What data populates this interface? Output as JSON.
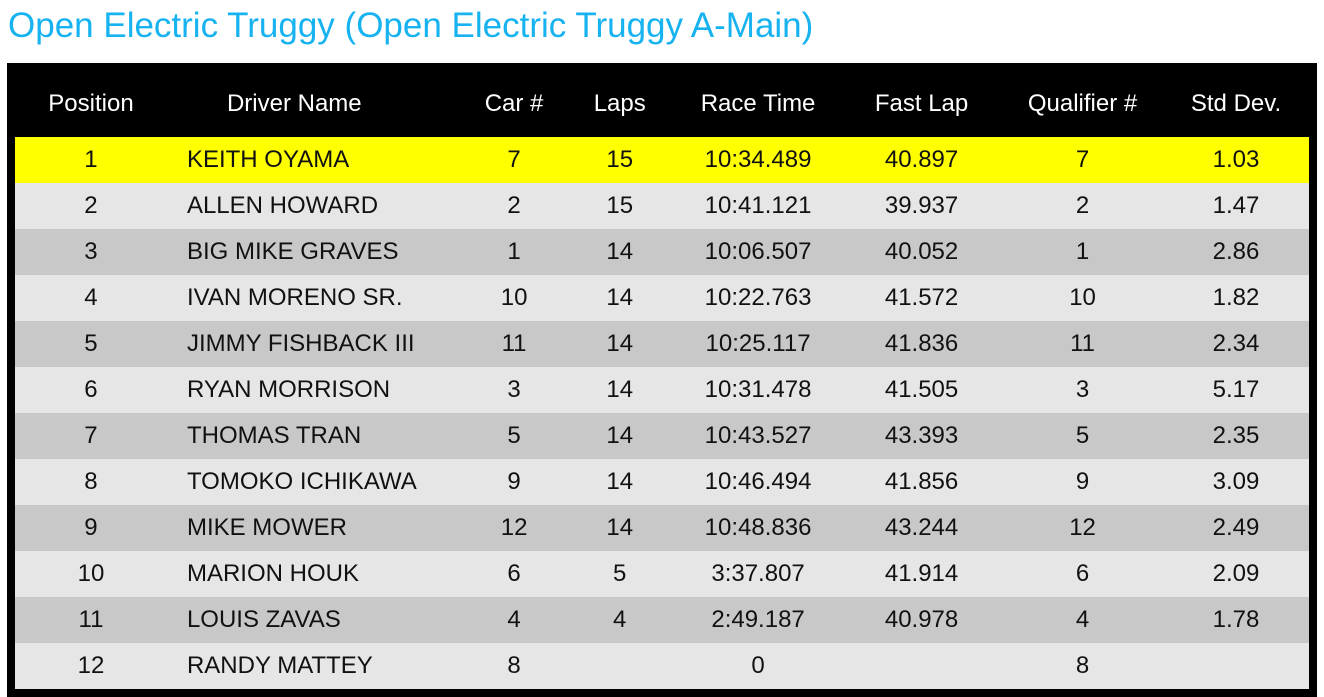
{
  "title": "Open Electric Truggy (Open Electric Truggy A-Main)",
  "table": {
    "headers": [
      "Position",
      "Driver Name",
      "Car #",
      "Laps",
      "Race Time",
      "Fast Lap",
      "Qualifier #",
      "Std Dev."
    ],
    "rows": [
      [
        "1",
        "KEITH OYAMA",
        "7",
        "15",
        "10:34.489",
        "40.897",
        "7",
        "1.03"
      ],
      [
        "2",
        "ALLEN HOWARD",
        "2",
        "15",
        "10:41.121",
        "39.937",
        "2",
        "1.47"
      ],
      [
        "3",
        "BIG MIKE GRAVES",
        "1",
        "14",
        "10:06.507",
        "40.052",
        "1",
        "2.86"
      ],
      [
        "4",
        "IVAN MORENO SR.",
        "10",
        "14",
        "10:22.763",
        "41.572",
        "10",
        "1.82"
      ],
      [
        "5",
        "JIMMY FISHBACK III",
        "11",
        "14",
        "10:25.117",
        "41.836",
        "11",
        "2.34"
      ],
      [
        "6",
        "RYAN MORRISON",
        "3",
        "14",
        "10:31.478",
        "41.505",
        "3",
        "5.17"
      ],
      [
        "7",
        "THOMAS TRAN",
        "5",
        "14",
        "10:43.527",
        "43.393",
        "5",
        "2.35"
      ],
      [
        "8",
        "TOMOKO ICHIKAWA",
        "9",
        "14",
        "10:46.494",
        "41.856",
        "9",
        "3.09"
      ],
      [
        "9",
        "MIKE MOWER",
        "12",
        "14",
        "10:48.836",
        "43.244",
        "12",
        "2.49"
      ],
      [
        "10",
        "MARION HOUK",
        "6",
        "5",
        "3:37.807",
        "41.914",
        "6",
        "2.09"
      ],
      [
        "11",
        "LOUIS ZAVAS",
        "4",
        "4",
        "2:49.187",
        "40.978",
        "4",
        "1.78"
      ],
      [
        "12",
        "RANDY MATTEY",
        "8",
        null,
        "0",
        null,
        "8",
        null
      ]
    ]
  }
}
